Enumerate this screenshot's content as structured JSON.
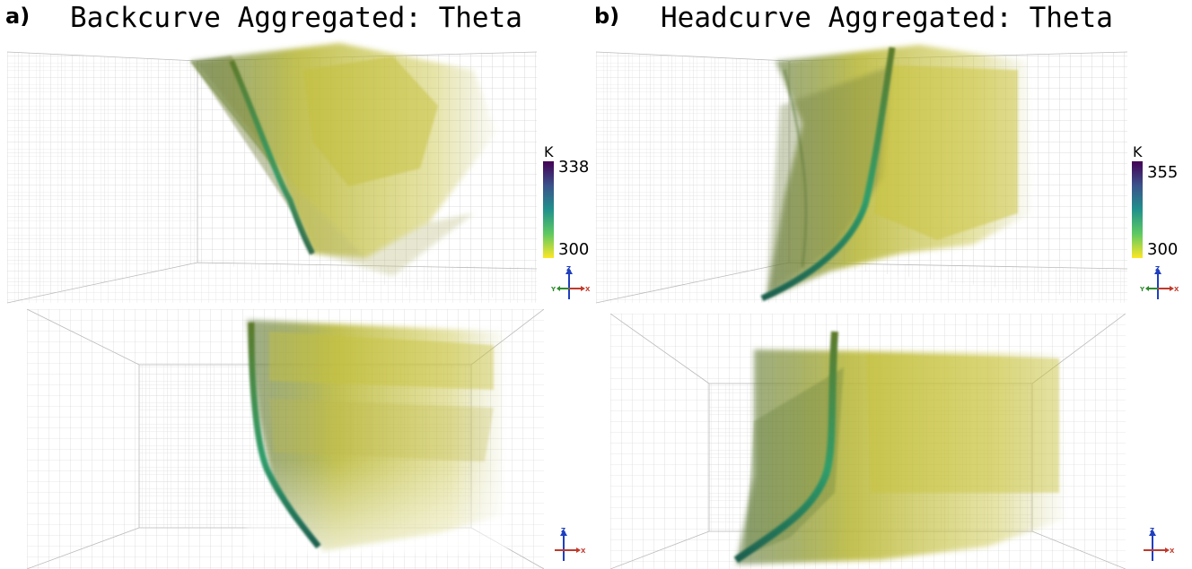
{
  "panels": [
    {
      "letter": "a)",
      "title": "Backcurve Aggregated: Theta",
      "colorbar": {
        "unit": "K",
        "max": "338",
        "min": "300"
      }
    },
    {
      "letter": "b)",
      "title": "Headcurve Aggregated: Theta",
      "colorbar": {
        "unit": "K",
        "max": "355",
        "min": "300"
      }
    }
  ],
  "axes_labels": {
    "x": "X",
    "y": "Y",
    "z": "Z"
  },
  "colors": {
    "axis_x": "#c0392b",
    "axis_y": "#2e8b2e",
    "axis_z": "#1f3fbf",
    "colormap": [
      "#440154",
      "#3b528b",
      "#21918c",
      "#5ec962",
      "#fde725"
    ]
  }
}
